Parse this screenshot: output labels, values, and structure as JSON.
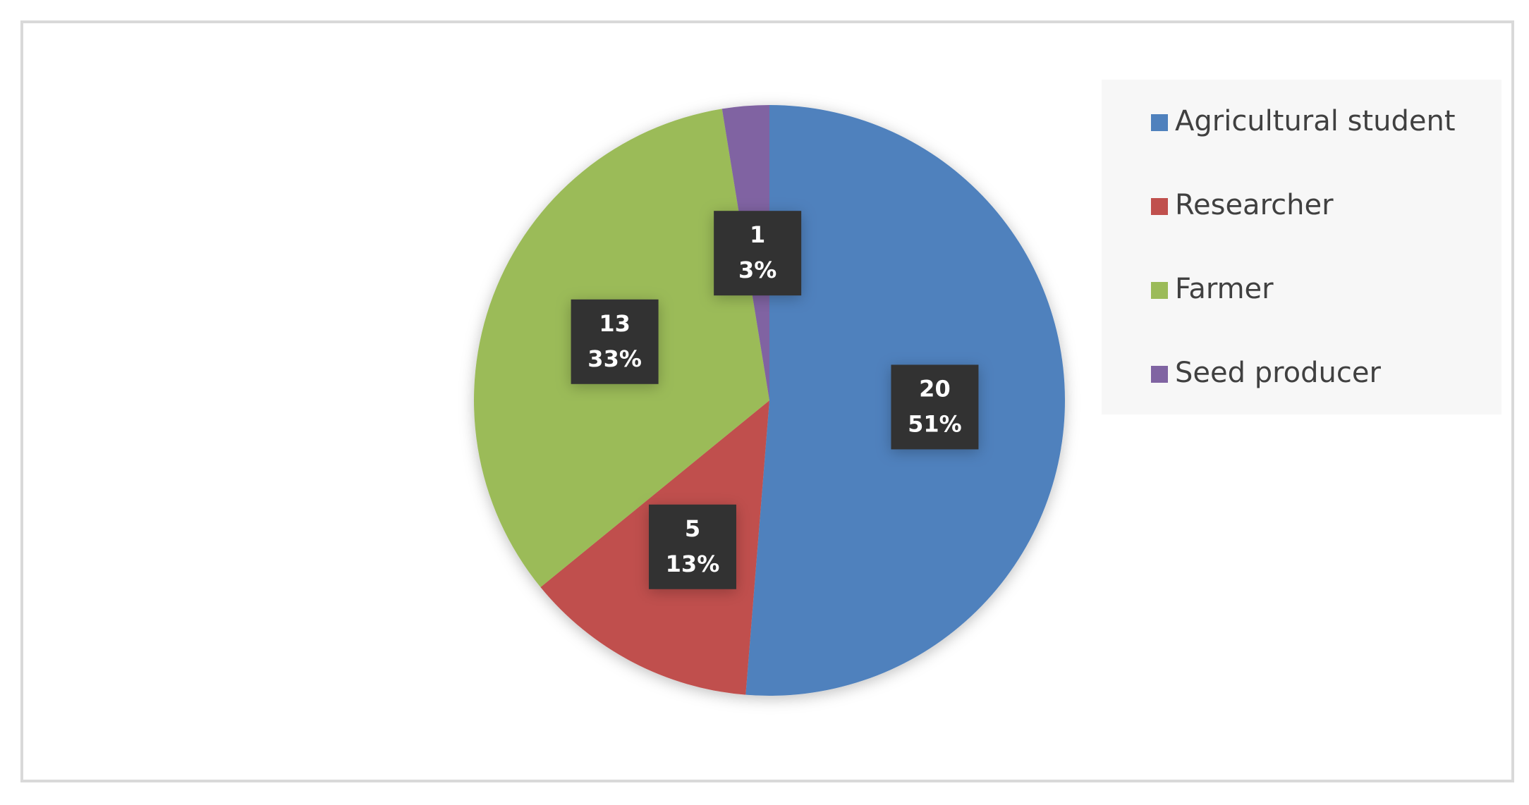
{
  "chart_data": {
    "type": "pie",
    "categories": [
      "Agricultural student",
      "Researcher",
      "Farmer",
      "Seed producer"
    ],
    "values": [
      20,
      5,
      13,
      1
    ],
    "percent_labels": [
      "51%",
      "13%",
      "33%",
      "3%"
    ],
    "colors": [
      "#4f81bd",
      "#c0504d",
      "#9bbb59",
      "#8064a2"
    ],
    "legend": "right"
  }
}
